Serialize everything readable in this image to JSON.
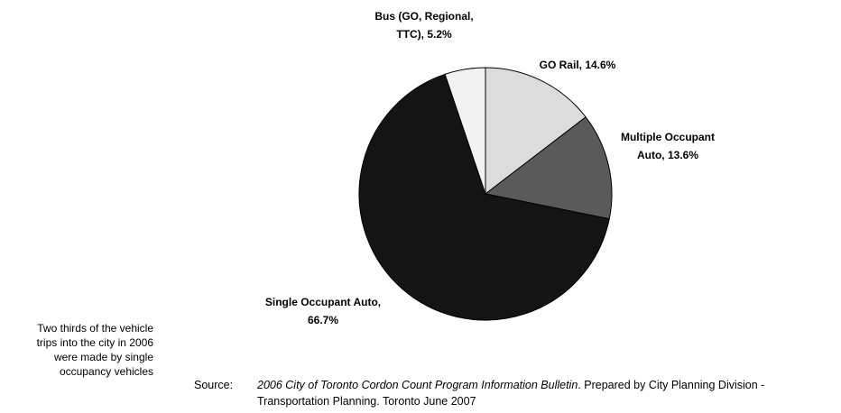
{
  "chart_data": {
    "type": "pie",
    "categories": [
      "GO Rail,",
      "Multiple Occupant Auto,",
      "Single Occupant Auto,",
      "Bus (GO, Regional, TTC),"
    ],
    "values": [
      14.6,
      13.6,
      66.7,
      5.2
    ],
    "value_labels": [
      "14.6%",
      "13.6%",
      "66.7%",
      "5.2%"
    ],
    "colors": [
      "#dcdcdc",
      "#5a5a5a",
      "#141414",
      "#f2f2f2"
    ]
  },
  "note": "Two thirds of the vehicle trips into the city in 2006 were made by single occupancy vehicles",
  "source": {
    "label": "Source:",
    "title": "2006 City of Toronto Cordon Count Program Information Bulletin",
    "text": ". Prepared by City Planning Division - Transportation Planning. Toronto June 2007"
  }
}
